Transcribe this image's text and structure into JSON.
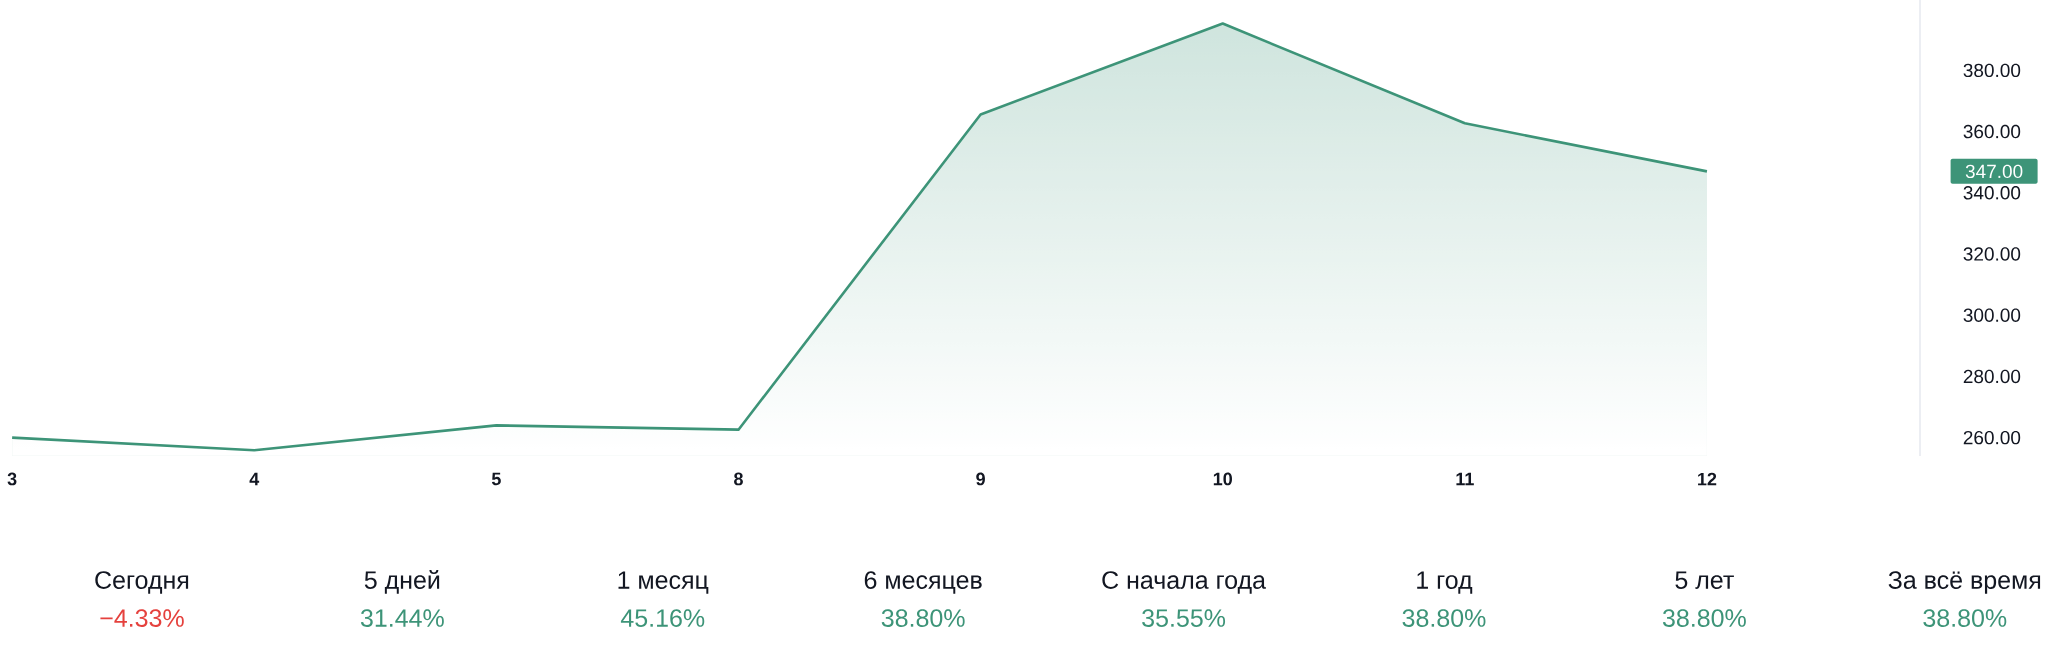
{
  "chart_data": [
    {
      "type": "area",
      "categories": [
        "3",
        "4",
        "5",
        "8",
        "9",
        "10",
        "11",
        "12"
      ],
      "values": [
        260.0,
        255.9,
        264.0,
        262.6,
        365.6,
        395.3,
        362.7,
        347.0
      ],
      "color": "#3d9478",
      "ylim": [
        254,
        403
      ],
      "yticks": [
        {
          "value": 260,
          "label": "260.00"
        },
        {
          "value": 280,
          "label": "280.00"
        },
        {
          "value": 300,
          "label": "300.00"
        },
        {
          "value": 320,
          "label": "320.00"
        },
        {
          "value": 340,
          "label": "340.00"
        },
        {
          "value": 360,
          "label": "360.00"
        },
        {
          "value": 380,
          "label": "380.00"
        }
      ],
      "annotations": [
        "347.00"
      ]
    },
    {
      "type": "other",
      "categories": [
        "Сегодня",
        "5 дней",
        "1 месяц",
        "6 месяцев",
        "С начала года",
        "1 год",
        "5 лет",
        "За всё время"
      ],
      "value_labels": [
        "−4.33%",
        "31.44%",
        "45.16%",
        "38.80%",
        "35.55%",
        "38.80%",
        "38.80%",
        "38.80%"
      ],
      "colors": [
        "#e5413d",
        "#3d9478",
        "#3d9478",
        "#3d9478",
        "#3d9478",
        "#3d9478",
        "#3d9478",
        "#3d9478"
      ]
    }
  ]
}
